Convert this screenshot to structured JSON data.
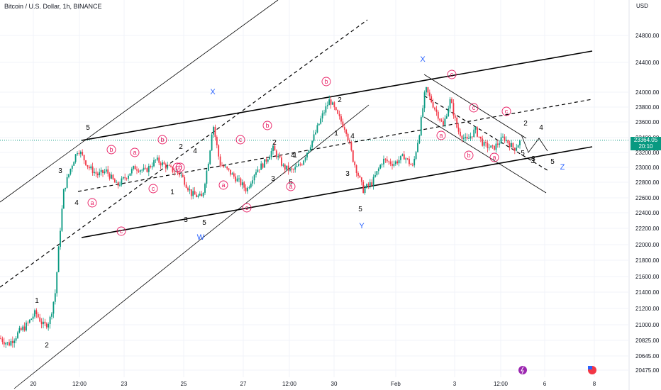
{
  "header": {
    "title": "Bitcoin / U.S. Dollar, 1h, BINANCE",
    "currency": "USD"
  },
  "price_tag": {
    "price": "23364.05",
    "countdown": "20:10",
    "color": "#089981"
  },
  "chart_data": {
    "type": "candlestick",
    "title": "Bitcoin / U.S. Dollar, 1h, BINANCE",
    "ylabel": "USD",
    "y_ticks": [
      "24800.00",
      "24400.00",
      "24000.00",
      "23800.00",
      "23600.00",
      "23400.00",
      "23200.00",
      "23000.00",
      "22800.00",
      "22600.00",
      "22400.00",
      "22200.00",
      "22000.00",
      "21800.00",
      "21600.00",
      "21400.00",
      "21200.00",
      "21000.00",
      "20825.00",
      "20645.00",
      "20475.00"
    ],
    "x_ticks": [
      "20",
      "12:00",
      "23",
      "25",
      "27",
      "12:00",
      "30",
      "Feb",
      "3",
      "12:00",
      "6",
      "8"
    ],
    "last_price": 23364.05,
    "up_color": "#089981",
    "down_color": "#f23645",
    "price_path": [
      [
        0,
        20850
      ],
      [
        12,
        20780
      ],
      [
        25,
        20900
      ],
      [
        38,
        21000
      ],
      [
        50,
        21150
      ],
      [
        62,
        20980
      ],
      [
        70,
        21050
      ],
      [
        78,
        21400
      ],
      [
        84,
        22100
      ],
      [
        90,
        22700
      ],
      [
        100,
        23000
      ],
      [
        110,
        23250
      ],
      [
        125,
        23000
      ],
      [
        138,
        22900
      ],
      [
        150,
        22950
      ],
      [
        165,
        22750
      ],
      [
        175,
        22850
      ],
      [
        190,
        23000
      ],
      [
        205,
        22950
      ],
      [
        220,
        23100
      ],
      [
        240,
        22980
      ],
      [
        255,
        22900
      ],
      [
        270,
        22650
      ],
      [
        285,
        22600
      ],
      [
        295,
        23150
      ],
      [
        300,
        23600
      ],
      [
        310,
        23050
      ],
      [
        322,
        22950
      ],
      [
        338,
        22800
      ],
      [
        348,
        22700
      ],
      [
        360,
        22950
      ],
      [
        372,
        23050
      ],
      [
        385,
        23250
      ],
      [
        400,
        23000
      ],
      [
        412,
        22950
      ],
      [
        425,
        23050
      ],
      [
        440,
        23350
      ],
      [
        455,
        23700
      ],
      [
        465,
        23900
      ],
      [
        475,
        23700
      ],
      [
        488,
        23500
      ],
      [
        498,
        23100
      ],
      [
        505,
        22900
      ],
      [
        512,
        22700
      ],
      [
        525,
        22800
      ],
      [
        540,
        23100
      ],
      [
        555,
        23050
      ],
      [
        570,
        23150
      ],
      [
        582,
        23000
      ],
      [
        592,
        23500
      ],
      [
        600,
        24050
      ],
      [
        612,
        23800
      ],
      [
        625,
        23550
      ],
      [
        635,
        23900
      ],
      [
        645,
        23500
      ],
      [
        658,
        23350
      ],
      [
        670,
        23500
      ],
      [
        682,
        23300
      ],
      [
        695,
        23250
      ],
      [
        710,
        23400
      ],
      [
        725,
        23250
      ],
      [
        735,
        23364
      ]
    ],
    "wave_labels": {
      "black": [
        "1",
        "2",
        "3",
        "4",
        "5",
        "3",
        "5",
        "2",
        "1",
        "4",
        "3",
        "5",
        "2",
        "1",
        "3",
        "4",
        "5",
        "2",
        "1",
        "4",
        "3",
        "5",
        "2",
        "3",
        "4",
        "5"
      ],
      "blue": [
        "X",
        "W",
        "X",
        "Y",
        "Z"
      ],
      "circled_red": [
        "a",
        "b",
        "a",
        "c",
        "b",
        "c",
        "a",
        "c",
        "b",
        "c",
        "a",
        "b",
        "a",
        "c",
        "c",
        "b",
        "a",
        "c",
        "b",
        "c"
      ]
    }
  },
  "bottom_icons": {
    "left": "lightning-icon",
    "right": "us-flag-icon"
  }
}
